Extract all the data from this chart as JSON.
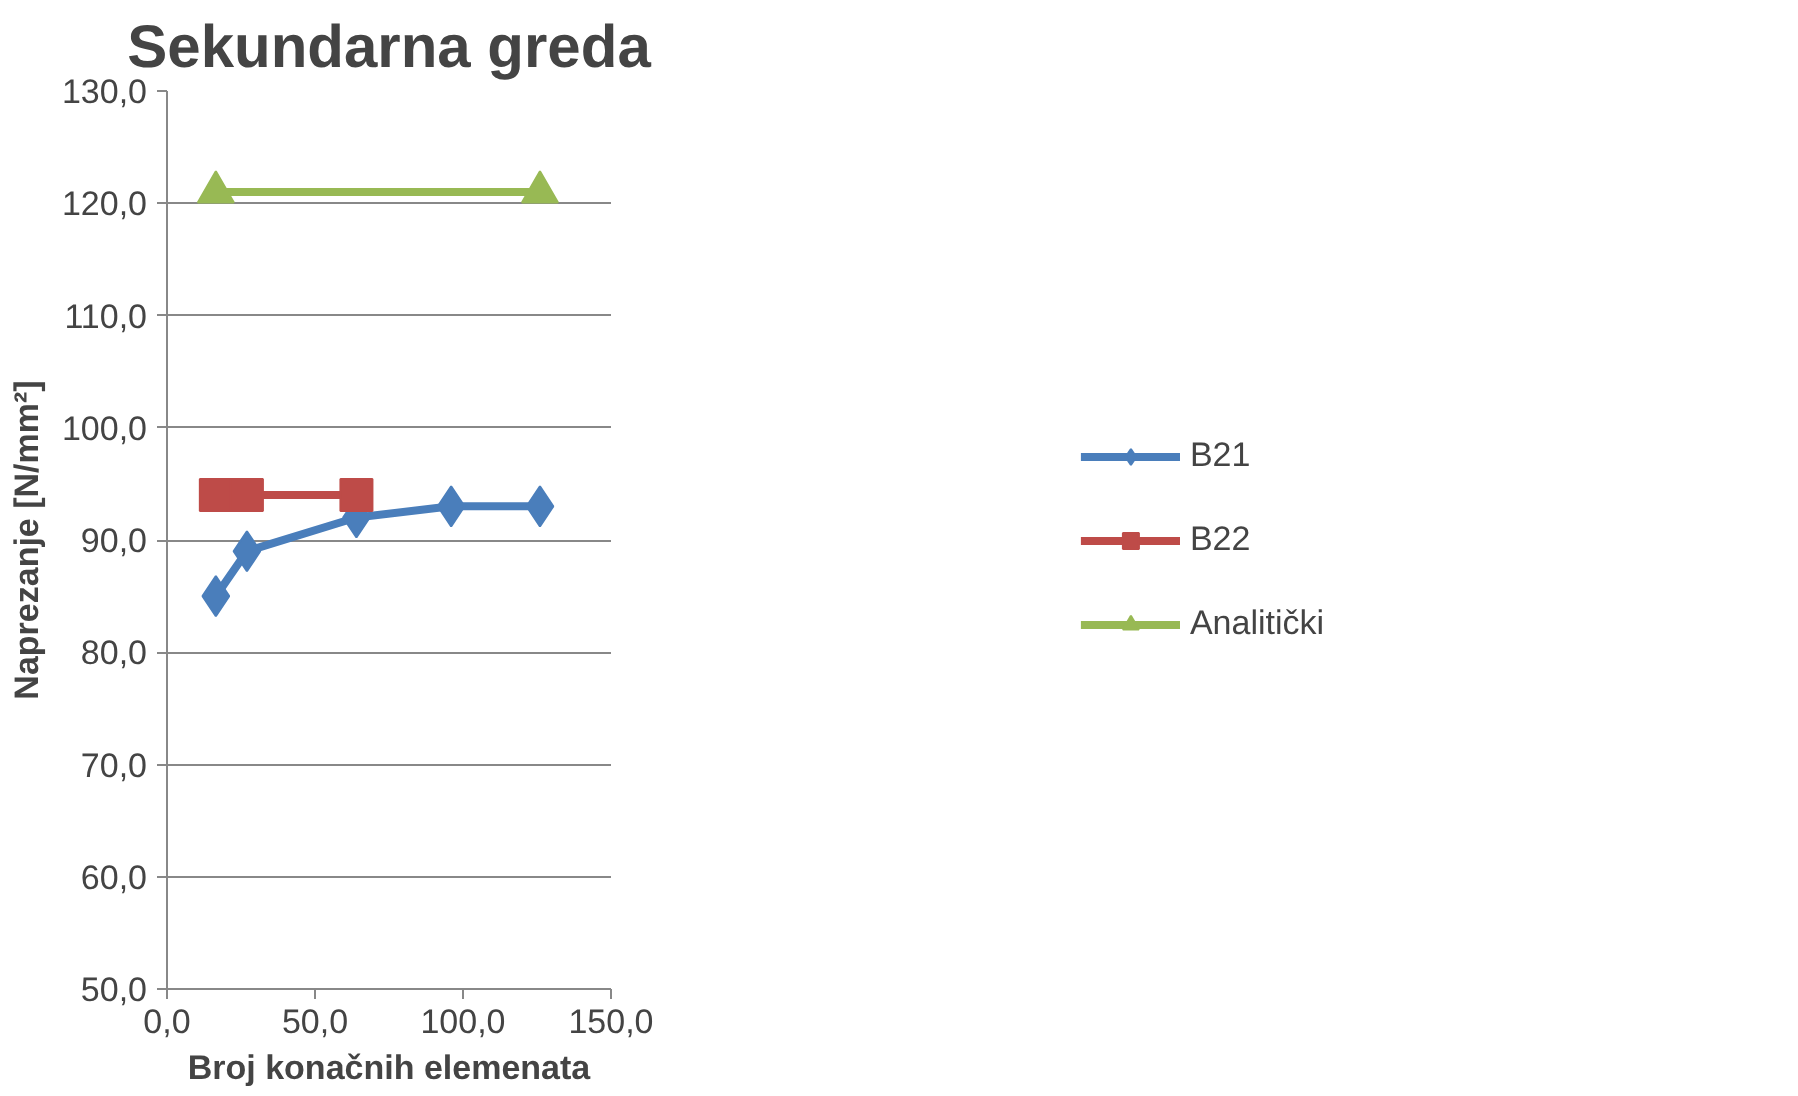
{
  "chart_data": {
    "type": "line",
    "title": "Sekundarna greda",
    "xlabel": "Broj konačnih elemenata",
    "ylabel": "Naprezanje [N/mm²]",
    "series": [
      {
        "name": "B21",
        "color": "#4a7ebb",
        "marker": "diamond",
        "x": [
          16.5,
          27,
          64,
          96,
          126
        ],
        "values": [
          85,
          89,
          92,
          93,
          93
        ]
      },
      {
        "name": "B22",
        "color": "#be4b48",
        "marker": "square",
        "x": [
          16.5,
          27,
          64
        ],
        "values": [
          94,
          94,
          94
        ]
      },
      {
        "name": "Analitički",
        "color": "#98b954",
        "marker": "triangle",
        "x": [
          16.5,
          126
        ],
        "values": [
          121,
          121
        ]
      }
    ],
    "xlim": [
      0,
      150
    ],
    "ylim": [
      50,
      130
    ],
    "xticks": [
      {
        "value": 0,
        "label": "0,0"
      },
      {
        "value": 50,
        "label": "50,0"
      },
      {
        "value": 100,
        "label": "100,0"
      },
      {
        "value": 150,
        "label": "150,0"
      }
    ],
    "yticks": [
      {
        "value": 50,
        "label": "50,0"
      },
      {
        "value": 60,
        "label": "60,0"
      },
      {
        "value": 70,
        "label": "70,0"
      },
      {
        "value": 80,
        "label": "80,0"
      },
      {
        "value": 90,
        "label": "90,0"
      },
      {
        "value": 100,
        "label": "100,0"
      },
      {
        "value": 110,
        "label": "110,0"
      },
      {
        "value": 120,
        "label": "120,0"
      },
      {
        "value": 130,
        "label": "130,0"
      }
    ],
    "grid": "y",
    "legend": "right",
    "line_style": "solid"
  }
}
